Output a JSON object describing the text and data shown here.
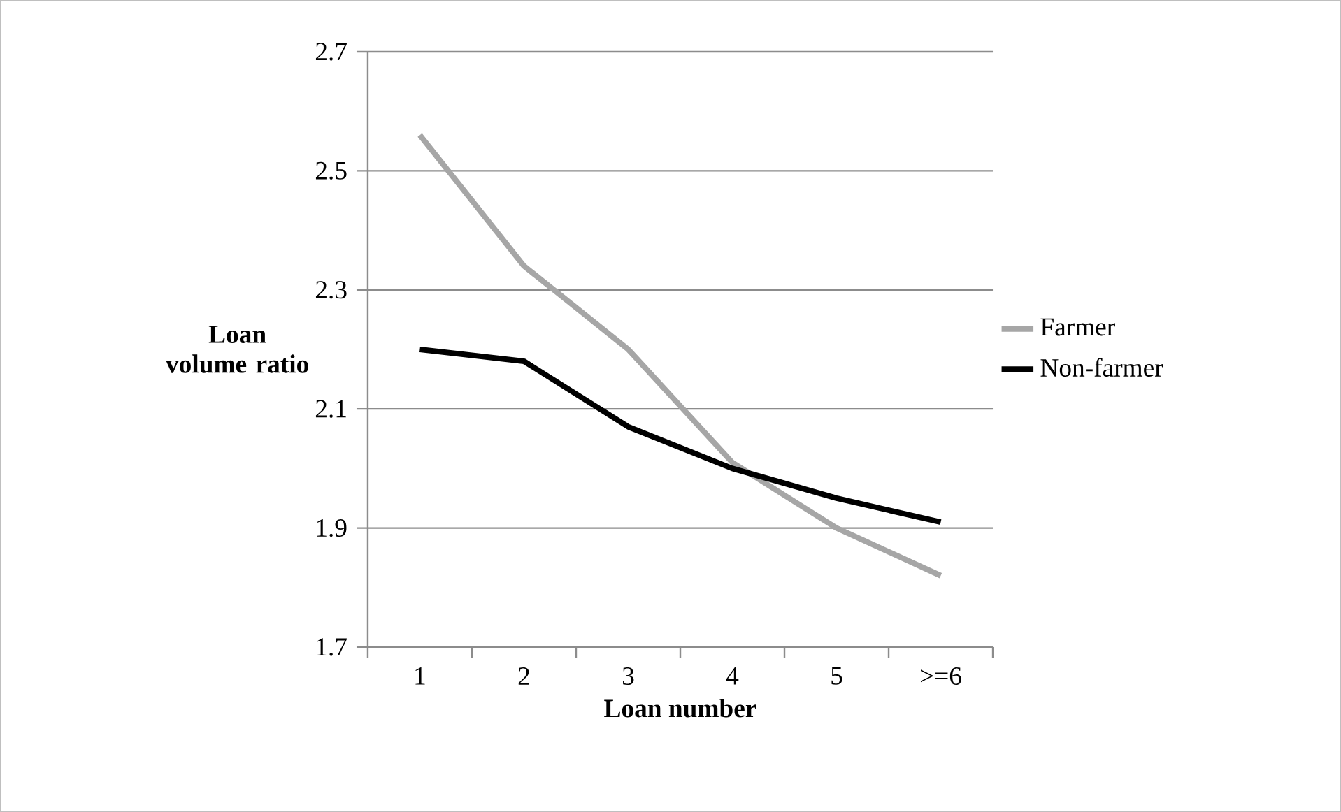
{
  "chart_data": {
    "type": "line",
    "xlabel": "Loan number",
    "ylabel": "Loan volume ratio",
    "categories": [
      "1",
      "2",
      "3",
      "4",
      "5",
      ">=6"
    ],
    "series": [
      {
        "name": "Farmer",
        "color": "#a6a6a6",
        "values": [
          2.56,
          2.34,
          2.2,
          2.01,
          1.9,
          1.82
        ]
      },
      {
        "name": "Non-farmer",
        "color": "#000000",
        "values": [
          2.2,
          2.18,
          2.07,
          2.0,
          1.95,
          1.91
        ]
      }
    ],
    "ylim": [
      1.7,
      2.7
    ],
    "yticks": [
      1.7,
      1.9,
      2.1,
      2.3,
      2.5,
      2.7
    ],
    "grid": "y",
    "legend": "right",
    "marker": "none",
    "line_style": "solid"
  }
}
